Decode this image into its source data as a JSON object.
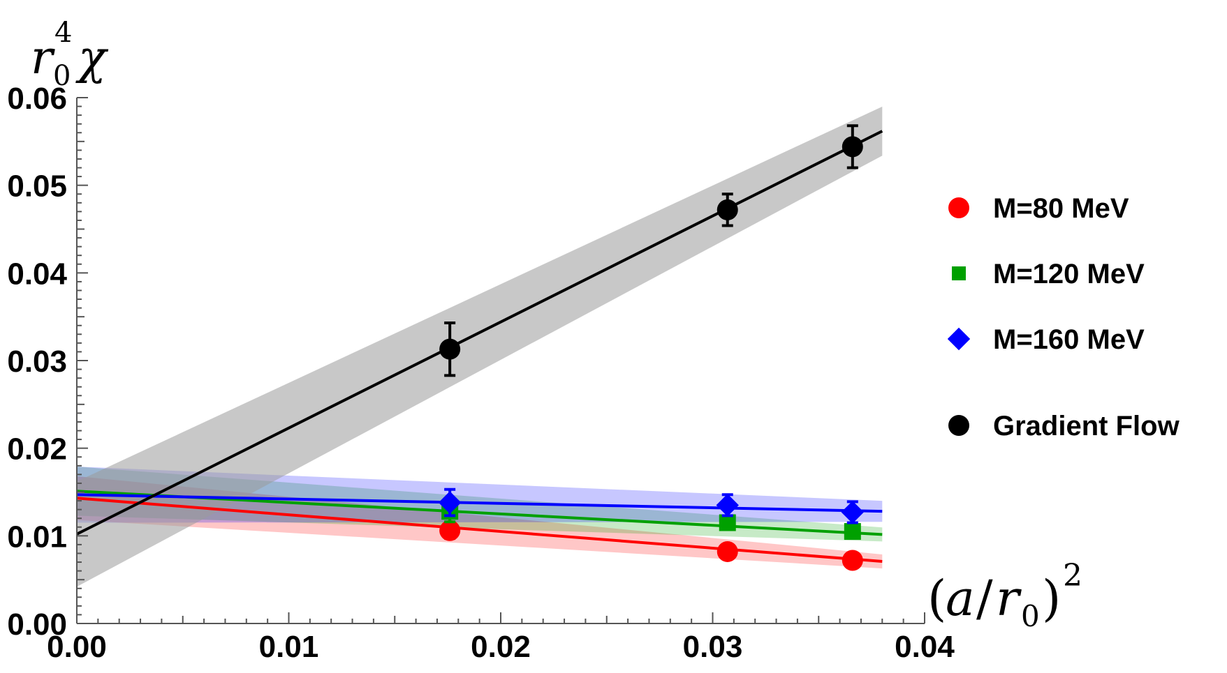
{
  "chart_data": {
    "type": "scatter",
    "xlabel": "(a/r₀)²",
    "ylabel": "r₀⁴χ",
    "xlim": [
      0,
      0.04
    ],
    "ylim": [
      0,
      0.06
    ],
    "x_ticks": [
      "0.00",
      "0.01",
      "0.02",
      "0.03",
      "0.04"
    ],
    "y_ticks": [
      "0.00",
      "0.01",
      "0.02",
      "0.03",
      "0.04",
      "0.05",
      "0.06"
    ],
    "legend_position": "right",
    "series": [
      {
        "name": "M=80 MeV",
        "color": "#ff0000",
        "marker": "circle",
        "points": [
          {
            "x": 0.0176,
            "y": 0.0106,
            "err": 0.0009
          },
          {
            "x": 0.0307,
            "y": 0.0082,
            "err": 0.0006
          },
          {
            "x": 0.0366,
            "y": 0.0072,
            "err": 0.0006
          }
        ],
        "fit": {
          "intercept": 0.0143,
          "slope": -0.19,
          "band_at_0": 0.0025,
          "band_at_end": 0.0008
        }
      },
      {
        "name": "M=120 MeV",
        "color": "#00a000",
        "marker": "square",
        "points": [
          {
            "x": 0.0176,
            "y": 0.0128,
            "err": 0.0012
          },
          {
            "x": 0.0307,
            "y": 0.0115,
            "err": 0.0007
          },
          {
            "x": 0.0366,
            "y": 0.0105,
            "err": 0.0007
          }
        ],
        "fit": {
          "intercept": 0.0151,
          "slope": -0.13,
          "band_at_0": 0.0028,
          "band_at_end": 0.0008
        }
      },
      {
        "name": "M=160 MeV",
        "color": "#0000ff",
        "marker": "diamond",
        "points": [
          {
            "x": 0.0176,
            "y": 0.0138,
            "err": 0.0015
          },
          {
            "x": 0.0307,
            "y": 0.0135,
            "err": 0.0012
          },
          {
            "x": 0.0366,
            "y": 0.0127,
            "err": 0.0012
          }
        ],
        "fit": {
          "intercept": 0.0147,
          "slope": -0.05,
          "band_at_0": 0.0032,
          "band_at_end": 0.0012
        }
      },
      {
        "name": "Gradient Flow",
        "color": "#000000",
        "marker": "circle",
        "points": [
          {
            "x": 0.0176,
            "y": 0.0313,
            "err": 0.003
          },
          {
            "x": 0.0307,
            "y": 0.0472,
            "err": 0.0018
          },
          {
            "x": 0.0366,
            "y": 0.0544,
            "err": 0.0024
          }
        ],
        "fit": {
          "intercept": 0.0102,
          "slope": 1.21,
          "band_at_0": 0.006,
          "band_at_end": 0.0028
        }
      }
    ]
  }
}
